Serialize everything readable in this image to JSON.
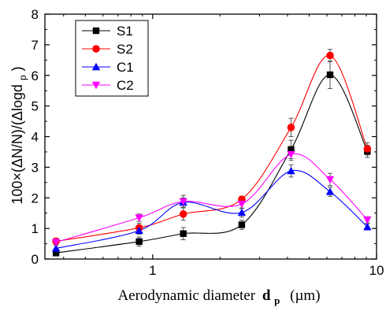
{
  "chart_data": {
    "type": "line",
    "title": "",
    "xlabel": {
      "prefix": "Aerodynamic diameter",
      "var": "d",
      "sub": "p",
      "unit": "(µm)"
    },
    "ylabel": {
      "main": "100×(ΔN/N)/(Δlogd",
      "sub": "p",
      "close": ")"
    },
    "x_scale": "log",
    "xlim": [
      0.33,
      10
    ],
    "ylim": [
      0,
      8
    ],
    "x_ticks": [
      1,
      10
    ],
    "x_tick_labels": [
      "1",
      "10"
    ],
    "y_ticks": [
      0,
      1,
      2,
      3,
      4,
      5,
      6,
      7,
      8
    ],
    "y_tick_labels": [
      "0",
      "1",
      "2",
      "3",
      "4",
      "5",
      "6",
      "7",
      "8"
    ],
    "grid": false,
    "legend_position": "top-left",
    "x": [
      0.37,
      0.87,
      1.37,
      2.5,
      4.15,
      6.2,
      9.1
    ],
    "series": [
      {
        "name": "S1",
        "color": "#000000",
        "marker": "square",
        "values": [
          0.2,
          0.57,
          0.83,
          1.12,
          3.58,
          6.02,
          3.52
        ],
        "errors": [
          0.1,
          0.15,
          0.2,
          0.15,
          0.3,
          0.45,
          0.2
        ]
      },
      {
        "name": "S2",
        "color": "#ff0000",
        "marker": "circle",
        "values": [
          0.58,
          1.02,
          1.47,
          1.95,
          4.3,
          6.65,
          3.6
        ],
        "errors": [
          0.1,
          0.15,
          0.2,
          0.1,
          0.3,
          0.2,
          0.2
        ]
      },
      {
        "name": "C1",
        "color": "#0000ff",
        "marker": "triangle-up",
        "values": [
          0.35,
          0.93,
          1.85,
          1.52,
          2.88,
          2.2,
          1.05
        ],
        "errors": [
          0.1,
          0.12,
          0.15,
          0.15,
          0.2,
          0.15,
          0.1
        ]
      },
      {
        "name": "C2",
        "color": "#ff00ff",
        "marker": "triangle-down",
        "values": [
          0.55,
          1.35,
          1.88,
          1.8,
          3.42,
          2.6,
          1.28
        ],
        "errors": [
          0.1,
          0.12,
          0.2,
          0.15,
          0.2,
          0.2,
          0.1
        ]
      }
    ]
  }
}
